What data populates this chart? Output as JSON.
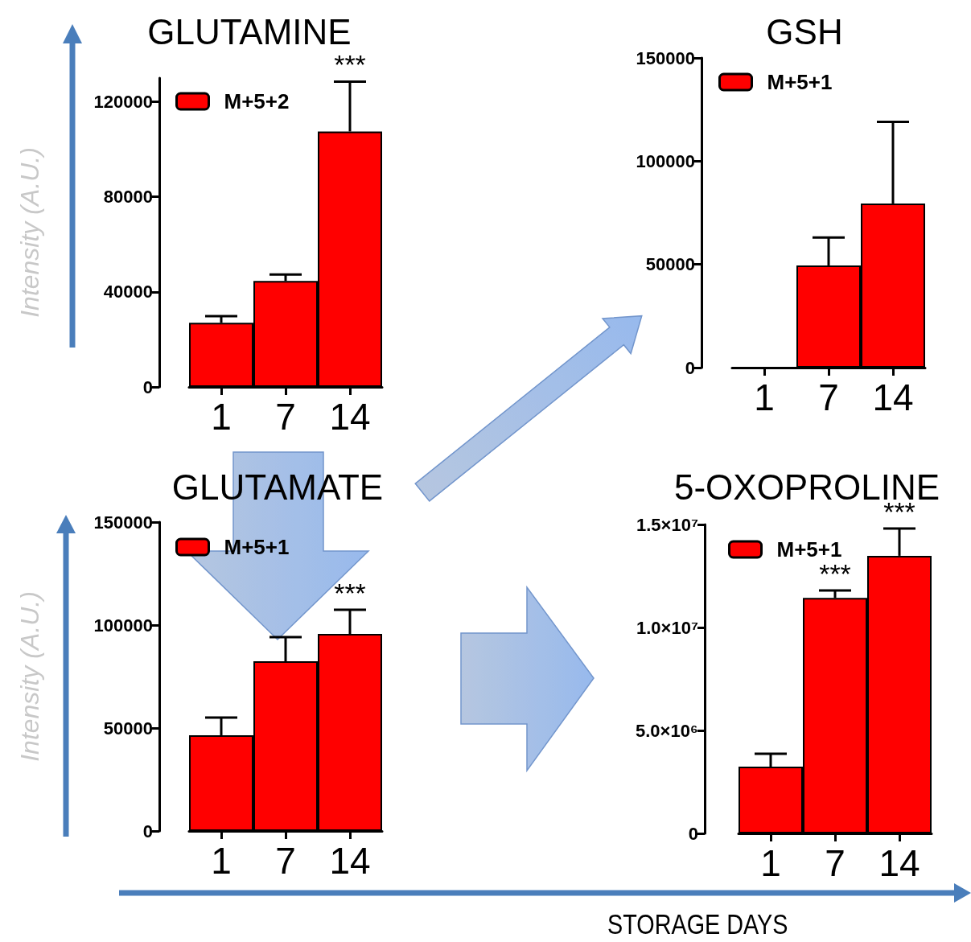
{
  "chart_data": [
    {
      "type": "bar",
      "title": "GLUTAMINE",
      "ylabel": "Intensity (A.U.)",
      "categories": [
        "1",
        "7",
        "14"
      ],
      "series": [
        {
          "name": "M+5+2",
          "color": "#ff0000",
          "values": [
            27000,
            44600,
            107500
          ],
          "errors": [
            2800,
            2700,
            21000
          ]
        }
      ],
      "ylim": [
        0,
        130000
      ],
      "yticks": [
        0,
        40000,
        80000,
        120000
      ],
      "legend": "top left",
      "annotations": [
        {
          "text": "***",
          "x": "14",
          "y": 107500
        }
      ]
    },
    {
      "type": "bar",
      "title": "GSH",
      "categories": [
        "1",
        "7",
        "14"
      ],
      "series": [
        {
          "name": "M+5+1",
          "color": "#ff0000",
          "values": [
            0,
            49500,
            79500
          ],
          "errors": [
            null,
            13500,
            39500
          ]
        }
      ],
      "ylim": [
        0,
        150000
      ],
      "yticks": [
        0,
        50000,
        100000,
        150000
      ],
      "legend": "top left"
    },
    {
      "type": "bar",
      "title": "GLUTAMATE",
      "ylabel": "Intensity (A.U.)",
      "categories": [
        "1",
        "7",
        "14"
      ],
      "series": [
        {
          "name": "M+5+1",
          "color": "#ff0000",
          "values": [
            46500,
            82400,
            95700
          ],
          "errors": [
            8600,
            11700,
            11700
          ]
        }
      ],
      "ylim": [
        0,
        150000
      ],
      "yticks": [
        0,
        50000,
        100000,
        150000
      ],
      "legend": "top left",
      "annotations": [
        {
          "text": "***",
          "x": "14",
          "y": 95700
        }
      ]
    },
    {
      "type": "bar",
      "title": "5-OXOPROLINE",
      "xlabel": "STORAGE DAYS",
      "categories": [
        "1",
        "7",
        "14"
      ],
      "series": [
        {
          "name": "M+5+1",
          "color": "#ff0000",
          "values": [
            3240000,
            11440000,
            13480000
          ],
          "errors": [
            630000,
            360000,
            1320000
          ]
        }
      ],
      "ylim": [
        0,
        15000000
      ],
      "yticks": [
        0,
        {
          "value": 5000000,
          "label": "5.0×10⁶"
        },
        {
          "value": 10000000,
          "label": "1.0×10⁷"
        },
        {
          "value": 15000000,
          "label": "1.5×10⁷"
        }
      ],
      "legend": "top left",
      "annotations": [
        {
          "text": "***",
          "x": "7",
          "y": 11440000
        },
        {
          "text": "***",
          "x": "14",
          "y": 13480000
        }
      ]
    }
  ]
}
